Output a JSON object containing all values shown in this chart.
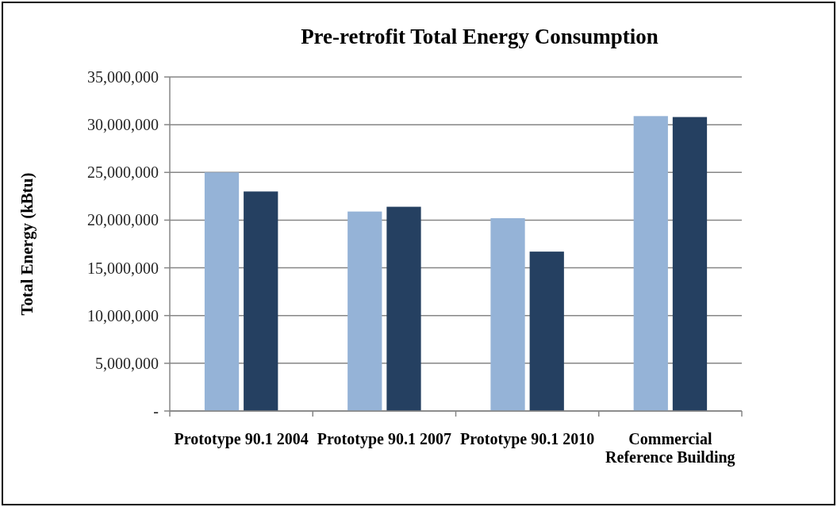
{
  "chart_data": {
    "type": "bar",
    "title": "Pre-retrofit Total Energy Consumption",
    "ylabel": "Total Energy (kBtu)",
    "categories": [
      "Prototype 90.1 2004",
      "Prototype 90.1 2007",
      "Prototype 90.1 2010",
      "Commercial Reference Building"
    ],
    "series": [
      {
        "color": "#95b3d7",
        "values": [
          25000000,
          20900000,
          20200000,
          30900000
        ]
      },
      {
        "color": "#254061",
        "values": [
          23000000,
          21400000,
          16700000,
          30800000
        ]
      }
    ],
    "ylim": [
      0,
      35000000
    ],
    "yticks": [
      {
        "value": 0,
        "label": "-"
      },
      {
        "value": 5000000,
        "label": "5,000,000"
      },
      {
        "value": 10000000,
        "label": "10,000,000"
      },
      {
        "value": 15000000,
        "label": "15,000,000"
      },
      {
        "value": 20000000,
        "label": "20,000,000"
      },
      {
        "value": 25000000,
        "label": "25,000,000"
      },
      {
        "value": 30000000,
        "label": "30,000,000"
      },
      {
        "value": 35000000,
        "label": "35,000,000"
      }
    ],
    "grid": "y"
  }
}
